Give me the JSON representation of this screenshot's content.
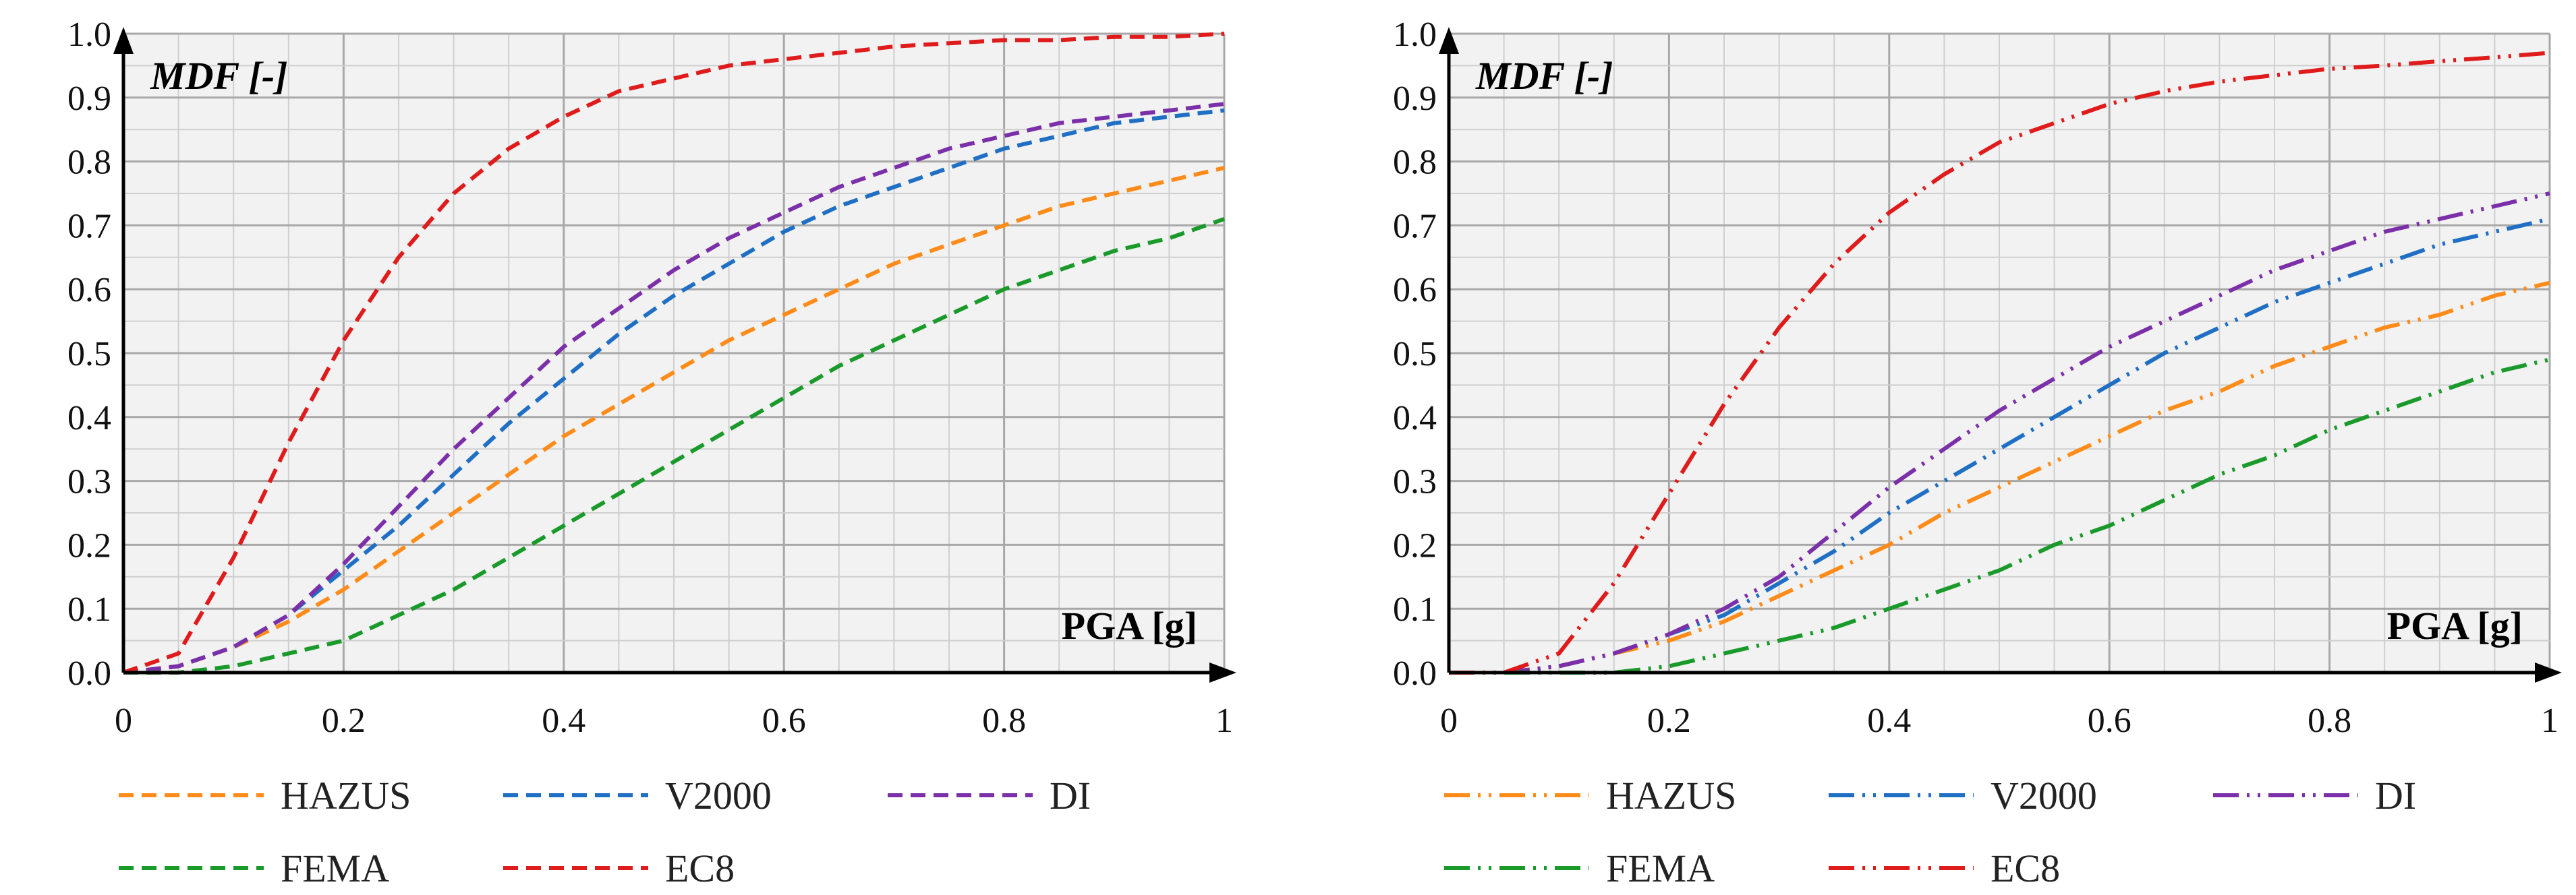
{
  "chart_data": [
    {
      "type": "line",
      "panel": "left",
      "line_style": "dashed",
      "xlabel": "PGA [g]",
      "ylabel": "MDF [-]",
      "xlim": [
        0,
        1
      ],
      "ylim": [
        0,
        1
      ],
      "x_ticks": [
        0,
        0.2,
        0.4,
        0.6,
        0.8,
        1
      ],
      "x_tick_labels": [
        "0",
        "0.2",
        "0.4",
        "0.6",
        "0.8",
        "1"
      ],
      "y_ticks": [
        0,
        0.1,
        0.2,
        0.3,
        0.4,
        0.5,
        0.6,
        0.7,
        0.8,
        0.9,
        1.0
      ],
      "y_tick_labels": [
        "0.0",
        "0.1",
        "0.2",
        "0.3",
        "0.4",
        "0.5",
        "0.6",
        "0.7",
        "0.8",
        "0.9",
        "1.0"
      ],
      "grid": true,
      "legend_position": "bottom",
      "x": [
        0,
        0.05,
        0.1,
        0.15,
        0.2,
        0.25,
        0.3,
        0.35,
        0.4,
        0.45,
        0.5,
        0.55,
        0.6,
        0.65,
        0.7,
        0.75,
        0.8,
        0.85,
        0.9,
        0.95,
        1.0
      ],
      "series": [
        {
          "name": "HAZUS",
          "color": "#ff8c1a",
          "values": [
            0,
            0.01,
            0.04,
            0.08,
            0.13,
            0.19,
            0.25,
            0.31,
            0.37,
            0.42,
            0.47,
            0.52,
            0.56,
            0.6,
            0.64,
            0.67,
            0.7,
            0.73,
            0.75,
            0.77,
            0.79
          ]
        },
        {
          "name": "V2000",
          "color": "#1f6fc4",
          "values": [
            0,
            0.01,
            0.04,
            0.09,
            0.16,
            0.23,
            0.31,
            0.39,
            0.46,
            0.53,
            0.59,
            0.64,
            0.69,
            0.73,
            0.76,
            0.79,
            0.82,
            0.84,
            0.86,
            0.87,
            0.88
          ]
        },
        {
          "name": "DI",
          "color": "#7b2fa8",
          "values": [
            0,
            0.01,
            0.04,
            0.09,
            0.17,
            0.26,
            0.35,
            0.43,
            0.51,
            0.57,
            0.63,
            0.68,
            0.72,
            0.76,
            0.79,
            0.82,
            0.84,
            0.86,
            0.87,
            0.88,
            0.89
          ]
        },
        {
          "name": "FEMA",
          "color": "#1a9a2a",
          "values": [
            0,
            0,
            0.01,
            0.03,
            0.05,
            0.09,
            0.13,
            0.18,
            0.23,
            0.28,
            0.33,
            0.38,
            0.43,
            0.48,
            0.52,
            0.56,
            0.6,
            0.63,
            0.66,
            0.68,
            0.71
          ]
        },
        {
          "name": "EC8",
          "color": "#e01b1b",
          "values": [
            0,
            0.03,
            0.18,
            0.36,
            0.52,
            0.65,
            0.75,
            0.82,
            0.87,
            0.91,
            0.93,
            0.95,
            0.96,
            0.97,
            0.98,
            0.985,
            0.99,
            0.99,
            0.995,
            0.995,
            1.0
          ]
        }
      ]
    },
    {
      "type": "line",
      "panel": "right",
      "line_style": "dash-dot-dot",
      "xlabel": "PGA [g]",
      "ylabel": "MDF [-]",
      "xlim": [
        0,
        1
      ],
      "ylim": [
        0,
        1
      ],
      "x_ticks": [
        0,
        0.2,
        0.4,
        0.6,
        0.8,
        1
      ],
      "x_tick_labels": [
        "0",
        "0.2",
        "0.4",
        "0.6",
        "0.8",
        "1"
      ],
      "y_ticks": [
        0,
        0.1,
        0.2,
        0.3,
        0.4,
        0.5,
        0.6,
        0.7,
        0.8,
        0.9,
        1.0
      ],
      "y_tick_labels": [
        "0.0",
        "0.1",
        "0.2",
        "0.3",
        "0.4",
        "0.5",
        "0.6",
        "0.7",
        "0.8",
        "0.9",
        "1.0"
      ],
      "grid": true,
      "legend_position": "bottom",
      "x": [
        0,
        0.05,
        0.1,
        0.15,
        0.2,
        0.25,
        0.3,
        0.35,
        0.4,
        0.45,
        0.5,
        0.55,
        0.6,
        0.65,
        0.7,
        0.75,
        0.8,
        0.85,
        0.9,
        0.95,
        1.0
      ],
      "series": [
        {
          "name": "HAZUS",
          "color": "#ff8c1a",
          "values": [
            0,
            0,
            0.01,
            0.03,
            0.05,
            0.08,
            0.12,
            0.16,
            0.2,
            0.25,
            0.29,
            0.33,
            0.37,
            0.41,
            0.44,
            0.48,
            0.51,
            0.54,
            0.56,
            0.59,
            0.61
          ]
        },
        {
          "name": "V2000",
          "color": "#1f6fc4",
          "values": [
            0,
            0,
            0.01,
            0.03,
            0.06,
            0.09,
            0.14,
            0.19,
            0.25,
            0.3,
            0.35,
            0.4,
            0.45,
            0.5,
            0.54,
            0.58,
            0.61,
            0.64,
            0.67,
            0.69,
            0.71
          ]
        },
        {
          "name": "DI",
          "color": "#7b2fa8",
          "values": [
            0,
            0,
            0.01,
            0.03,
            0.06,
            0.1,
            0.15,
            0.22,
            0.29,
            0.35,
            0.41,
            0.46,
            0.51,
            0.55,
            0.59,
            0.63,
            0.66,
            0.69,
            0.71,
            0.73,
            0.75
          ]
        },
        {
          "name": "FEMA",
          "color": "#1a9a2a",
          "values": [
            0,
            0,
            0,
            0,
            0.01,
            0.03,
            0.05,
            0.07,
            0.1,
            0.13,
            0.16,
            0.2,
            0.23,
            0.27,
            0.31,
            0.34,
            0.38,
            0.41,
            0.44,
            0.47,
            0.49
          ]
        },
        {
          "name": "EC8",
          "color": "#e01b1b",
          "values": [
            0,
            0,
            0.03,
            0.14,
            0.28,
            0.42,
            0.54,
            0.64,
            0.72,
            0.78,
            0.83,
            0.86,
            0.89,
            0.91,
            0.925,
            0.935,
            0.945,
            0.95,
            0.957,
            0.963,
            0.97
          ]
        }
      ]
    }
  ]
}
